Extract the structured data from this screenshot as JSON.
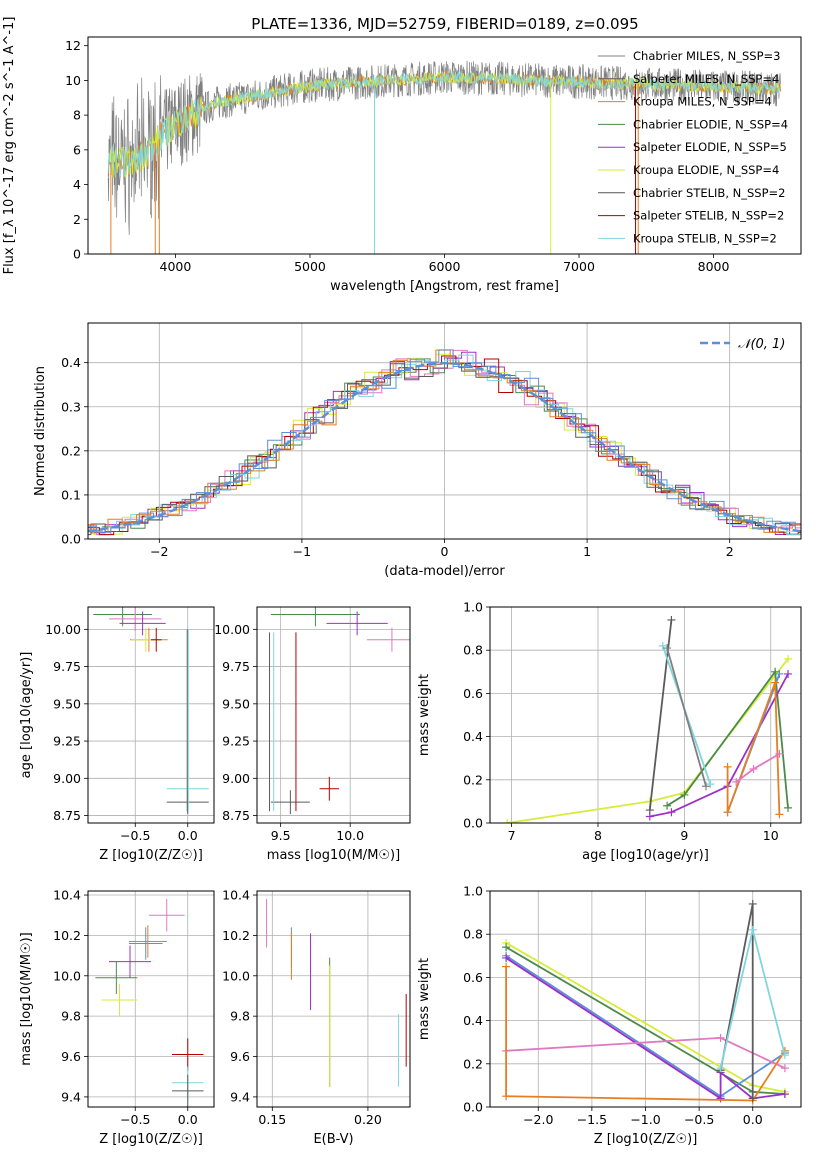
{
  "figure": {
    "title": "PLATE=1336, MJD=52759, FIBERID=0189, z=0.095"
  },
  "chart_data": [
    {
      "id": "spectrum",
      "type": "line",
      "xlabel": "wavelength [Angstrom, rest frame]",
      "ylabel": "Flux [f_λ 10^-17 erg cm^-2 s^-1 A^-1]",
      "xlim": [
        3350,
        8650
      ],
      "ylim": [
        0,
        12.5
      ],
      "xticks": [
        4000,
        5000,
        6000,
        7000,
        8000
      ],
      "yticks": [
        0,
        2,
        4,
        6,
        8,
        10,
        12
      ],
      "grid": false,
      "legend_position": "right",
      "series": [
        {
          "name": "Chabrier MILES, N_SSP=3",
          "color": "#808080"
        },
        {
          "name": "Salpeter MILES, N_SSP=4",
          "color": "#5b5b5b"
        },
        {
          "name": "Kroupa MILES, N_SSP=4",
          "color": "#e67e22"
        },
        {
          "name": "Chabrier ELODIE, N_SSP=4",
          "color": "#4c8a4c"
        },
        {
          "name": "Salpeter ELODIE, N_SSP=5",
          "color": "#9b30c8"
        },
        {
          "name": "Kroupa ELODIE, N_SSP=4",
          "color": "#d6ec3a"
        },
        {
          "name": "Chabrier STELIB, N_SSP=2",
          "color": "#555555"
        },
        {
          "name": "Salpeter STELIB, N_SSP=2",
          "color": "#b30000"
        },
        {
          "name": "Kroupa STELIB, N_SSP=2",
          "color": "#7fd6e0"
        }
      ],
      "data_colors": [
        "#808080",
        "#e67e22",
        "#d6ec3a",
        "#7fd6e0"
      ],
      "vertical_drops": [
        {
          "x": 3520,
          "color": "#e67e22"
        },
        {
          "x": 3850,
          "color": "#e67e22"
        },
        {
          "x": 3880,
          "color": "#e67e22"
        },
        {
          "x": 5480,
          "color": "#7fd6e0"
        },
        {
          "x": 6790,
          "color": "#d6ec3a"
        },
        {
          "x": 7420,
          "color": "#b30000"
        },
        {
          "x": 7440,
          "color": "#e67e22"
        }
      ]
    },
    {
      "id": "residuals",
      "type": "line",
      "xlabel": "(data-model)/error",
      "ylabel": "Normed distribution",
      "xlim": [
        -2.5,
        2.5
      ],
      "ylim": [
        0,
        0.49
      ],
      "xticks": [
        -2,
        -1,
        0,
        1,
        2
      ],
      "yticks": [
        0.0,
        0.1,
        0.2,
        0.3,
        0.4
      ],
      "grid": true,
      "legend_position": "top-right",
      "series": [
        {
          "name": "𝒩(0, 1)",
          "color": "#5b8fd6"
        }
      ],
      "hist_colors": [
        "#4c8a4c",
        "#9b30c8",
        "#d6ec3a",
        "#e377c2",
        "#b30000",
        "#7fd6e0",
        "#5b5b5b",
        "#e67e22",
        "#5b8fd6"
      ]
    },
    {
      "id": "age_vs_Z",
      "type": "scatter",
      "xlabel": "Z [log10(Z/Z☉)]",
      "ylabel": "age  [log10(age/yr)]",
      "xlim": [
        -0.95,
        0.25
      ],
      "ylim": [
        8.7,
        10.15
      ],
      "xticks": [
        -0.5,
        0.0
      ],
      "yticks": [
        8.75,
        9.0,
        9.25,
        9.5,
        9.75,
        10.0
      ],
      "grid": true,
      "points": [
        {
          "x": -0.62,
          "xerr": 0.28,
          "y": 10.1,
          "color": "#4c8a4c"
        },
        {
          "x": -0.5,
          "xerr": 0.25,
          "y": 10.07,
          "color": "#e377c2"
        },
        {
          "x": -0.43,
          "xerr": 0.22,
          "y": 10.04,
          "color": "#9b30c8"
        },
        {
          "x": -0.37,
          "xerr": 0.18,
          "y": 9.93,
          "color": "#e67e22"
        },
        {
          "x": -0.4,
          "xerr": 0.14,
          "y": 9.93,
          "color": "#d6ec3a"
        },
        {
          "x": -0.3,
          "xerr": 0.05,
          "y": 9.93,
          "color": "#b30000"
        },
        {
          "x": 0.0,
          "xerr": 0.2,
          "y": 8.93,
          "color": "#7fd6e0"
        },
        {
          "x": 0.0,
          "xerr": 0.2,
          "y": 8.84,
          "color": "#5b5b5b"
        }
      ]
    },
    {
      "id": "age_vs_mass",
      "type": "scatter",
      "xlabel": "mass [log10(M/M☉)]",
      "ylabel": "",
      "xlim": [
        9.33,
        10.43
      ],
      "ylim": [
        8.7,
        10.15
      ],
      "xticks": [
        9.5,
        10.0
      ],
      "yticks": [
        8.75,
        9.0,
        9.25,
        9.5,
        9.75,
        10.0
      ],
      "grid": true,
      "points": [
        {
          "x": 9.75,
          "xerr": 0.32,
          "y": 10.1,
          "color": "#4c8a4c"
        },
        {
          "x": 10.05,
          "xerr": 0.22,
          "y": 10.04,
          "color": "#9b30c8"
        },
        {
          "x": 10.3,
          "xerr": 0.18,
          "y": 9.93,
          "color": "#e377c2"
        },
        {
          "x": 9.57,
          "xerr": 0.14,
          "y": 8.84,
          "color": "#5b5b5b"
        },
        {
          "x": 9.85,
          "xerr": 0.07,
          "y": 8.93,
          "color": "#b30000"
        }
      ]
    },
    {
      "id": "mw_vs_age",
      "type": "line",
      "xlabel": "age  [log10(age/yr)]",
      "ylabel": "mass weight",
      "xlim": [
        6.75,
        10.35
      ],
      "ylim": [
        0,
        1.0
      ],
      "xticks": [
        7,
        8,
        9,
        10
      ],
      "yticks": [
        0.0,
        0.2,
        0.4,
        0.6,
        0.8,
        1.0
      ],
      "grid": true,
      "series": [
        {
          "color": "#d6ec3a",
          "points": [
            [
              6.95,
              0.0
            ],
            [
              8.6,
              0.1
            ],
            [
              9.0,
              0.14
            ],
            [
              10.2,
              0.76
            ]
          ]
        },
        {
          "color": "#4c8a4c",
          "points": [
            [
              8.8,
              0.08
            ],
            [
              9.0,
              0.13
            ],
            [
              10.05,
              0.7
            ],
            [
              10.2,
              0.07
            ]
          ]
        },
        {
          "color": "#5b5b5b",
          "points": [
            [
              8.6,
              0.06
            ],
            [
              8.85,
              0.94
            ]
          ]
        },
        {
          "color": "#7fd6e0",
          "points": [
            [
              8.75,
              0.82
            ],
            [
              9.3,
              0.18
            ]
          ]
        },
        {
          "color": "#808080",
          "points": [
            [
              8.8,
              0.81
            ],
            [
              9.25,
              0.17
            ]
          ]
        },
        {
          "color": "#9b30c8",
          "points": [
            [
              8.6,
              0.03
            ],
            [
              8.85,
              0.05
            ],
            [
              9.5,
              0.17
            ],
            [
              10.2,
              0.69
            ]
          ]
        },
        {
          "color": "#5b8fd6",
          "points": [
            [
              9.5,
              0.05
            ],
            [
              10.1,
              0.69
            ]
          ]
        },
        {
          "color": "#e67e22",
          "points": [
            [
              9.5,
              0.26
            ],
            [
              9.5,
              0.05
            ],
            [
              10.05,
              0.65
            ],
            [
              10.1,
              0.04
            ]
          ]
        },
        {
          "color": "#e377c2",
          "points": [
            [
              9.6,
              0.19
            ],
            [
              9.8,
              0.25
            ],
            [
              10.1,
              0.32
            ]
          ]
        }
      ]
    },
    {
      "id": "mass_vs_Z",
      "type": "scatter",
      "xlabel": "Z [log10(Z/Z☉)]",
      "ylabel": "mass [log10(M/M☉)]",
      "xlim": [
        -0.95,
        0.25
      ],
      "ylim": [
        9.35,
        10.42
      ],
      "xticks": [
        -0.5,
        0.0
      ],
      "yticks": [
        9.4,
        9.6,
        9.8,
        10.0,
        10.2,
        10.4
      ],
      "grid": true,
      "points": [
        {
          "x": -0.2,
          "xerr": 0.17,
          "y": 10.3,
          "color": "#e377c2"
        },
        {
          "x": -0.38,
          "xerr": 0.18,
          "y": 10.17,
          "color": "#e67e22"
        },
        {
          "x": -0.4,
          "xerr": 0.16,
          "y": 10.16,
          "color": "#5b8fd6"
        },
        {
          "x": -0.55,
          "xerr": 0.2,
          "y": 10.07,
          "color": "#9b30c8"
        },
        {
          "x": -0.68,
          "xerr": 0.2,
          "y": 9.99,
          "color": "#4c8a4c"
        },
        {
          "x": -0.65,
          "xerr": 0.17,
          "y": 9.88,
          "color": "#d6ec3a"
        },
        {
          "x": 0.0,
          "xerr": 0.15,
          "y": 9.61,
          "color": "#b30000"
        },
        {
          "x": 0.0,
          "xerr": 0.15,
          "y": 9.47,
          "color": "#7fd6e0"
        },
        {
          "x": 0.0,
          "xerr": 0.15,
          "y": 9.43,
          "color": "#5b5b5b"
        }
      ]
    },
    {
      "id": "mass_vs_ebv",
      "type": "scatter",
      "xlabel": "E(B-V)",
      "ylabel": "",
      "xlim": [
        0.142,
        0.222
      ],
      "ylim": [
        9.35,
        10.42
      ],
      "xticks": [
        0.15,
        0.2
      ],
      "yticks": [
        9.4,
        9.6,
        9.8,
        10.0,
        10.2,
        10.4
      ],
      "grid": true,
      "points": [
        {
          "x": 0.147,
          "y": 10.26,
          "yerr": 0.12,
          "color": "#e377c2"
        },
        {
          "x": 0.16,
          "y": 10.14,
          "yerr": 0.1,
          "color": "#5b8fd6"
        },
        {
          "x": 0.16,
          "y": 10.1,
          "yerr": 0.12,
          "color": "#e67e22"
        },
        {
          "x": 0.17,
          "y": 10.02,
          "yerr": 0.19,
          "color": "#9b30c8"
        },
        {
          "x": 0.18,
          "y": 9.77,
          "yerr": 0.32,
          "color": "#4c8a4c"
        },
        {
          "x": 0.18,
          "y": 9.75,
          "yerr": 0.3,
          "color": "#d6ec3a"
        },
        {
          "x": 0.216,
          "y": 9.63,
          "yerr": 0.18,
          "color": "#7fd6e0"
        },
        {
          "x": 0.22,
          "y": 9.73,
          "yerr": 0.18,
          "color": "#b30000"
        }
      ]
    },
    {
      "id": "mw_vs_Z",
      "type": "line",
      "xlabel": "Z [log10(Z/Z☉)]",
      "ylabel": "mass weight",
      "xlim": [
        -2.45,
        0.45
      ],
      "ylim": [
        0,
        1.0
      ],
      "xticks": [
        -2.0,
        -1.5,
        -1.0,
        -0.5,
        0.0
      ],
      "yticks": [
        0.0,
        0.2,
        0.4,
        0.6,
        0.8,
        1.0
      ],
      "grid": true,
      "series": [
        {
          "color": "#d6ec3a",
          "points": [
            [
              -2.3,
              0.76
            ],
            [
              0.0,
              0.1
            ],
            [
              0.3,
              0.07
            ]
          ]
        },
        {
          "color": "#4c8a4c",
          "points": [
            [
              -2.3,
              0.74
            ],
            [
              0.0,
              0.07
            ],
            [
              0.3,
              0.06
            ]
          ]
        },
        {
          "color": "#5b8fd6",
          "points": [
            [
              -2.3,
              0.7
            ],
            [
              -0.3,
              0.05
            ],
            [
              0.3,
              0.25
            ]
          ]
        },
        {
          "color": "#9b30c8",
          "points": [
            [
              -2.3,
              0.69
            ],
            [
              -0.3,
              0.04
            ],
            [
              -0.3,
              0.16
            ],
            [
              0.0,
              0.04
            ],
            [
              0.3,
              0.06
            ]
          ]
        },
        {
          "color": "#e377c2",
          "points": [
            [
              -2.3,
              0.26
            ],
            [
              -0.3,
              0.32
            ],
            [
              0.3,
              0.18
            ]
          ]
        },
        {
          "color": "#e67e22",
          "points": [
            [
              -2.3,
              0.65
            ],
            [
              -2.3,
              0.05
            ],
            [
              0.0,
              0.03
            ],
            [
              0.3,
              0.26
            ]
          ]
        },
        {
          "color": "#5b5b5b",
          "points": [
            [
              -0.3,
              0.17
            ],
            [
              0.0,
              0.94
            ],
            [
              0.0,
              0.04
            ]
          ]
        },
        {
          "color": "#7fd6e0",
          "points": [
            [
              -0.3,
              0.18
            ],
            [
              0.0,
              0.82
            ],
            [
              0.3,
              0.24
            ]
          ]
        }
      ]
    }
  ]
}
